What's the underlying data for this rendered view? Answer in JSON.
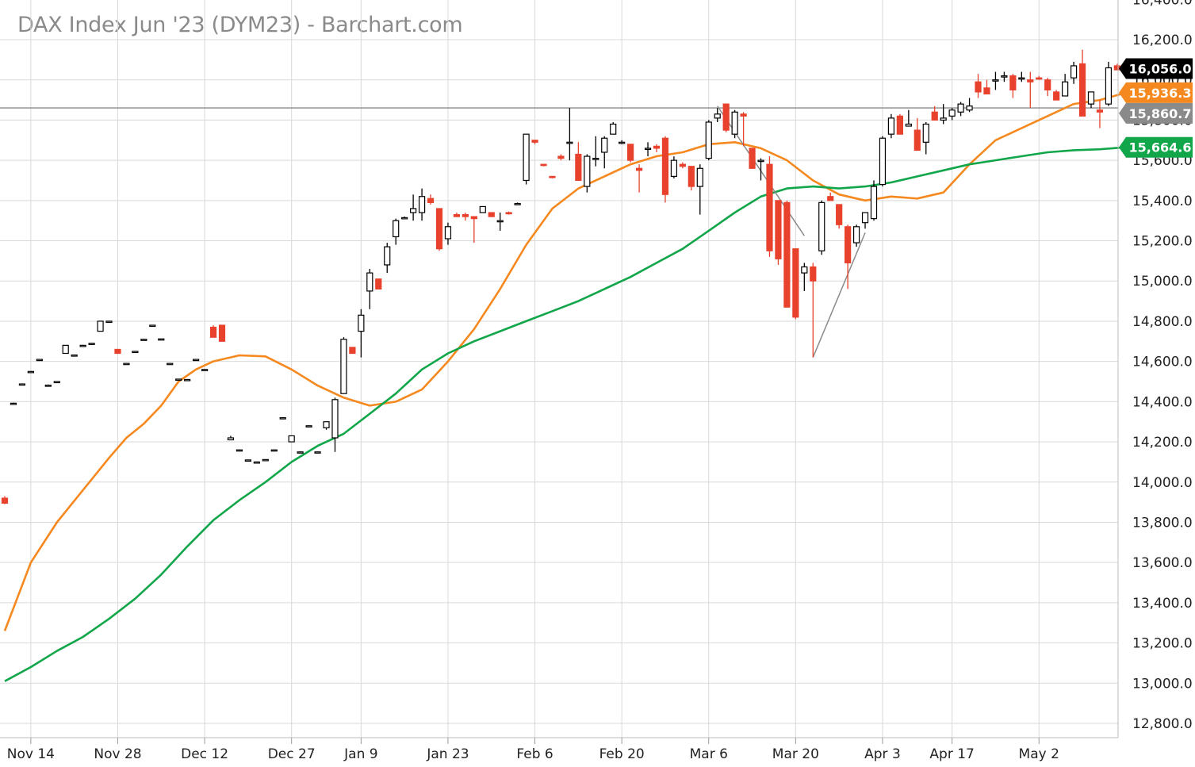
{
  "chart_title": "DAX Index Jun '23 (DYM23) - Barchart.com",
  "colors": {
    "up": "#000000",
    "down": "#e8412c",
    "ma_short": "#f5891f",
    "ma_long": "#12a64a",
    "ref_line": "#8a8a8a",
    "grid": "#d9d9d9"
  },
  "chart_data": {
    "type": "candlestick",
    "title": "DAX Index Jun '23 (DYM23) - Barchart.com",
    "y_axis": {
      "min": 12700,
      "max": 16400,
      "ticks": [
        12800,
        13000,
        13200,
        13400,
        13600,
        13800,
        14000,
        14200,
        14400,
        14600,
        14800,
        15000,
        15200,
        15400,
        15600,
        15800,
        16000,
        16200,
        16400
      ],
      "tick_labels": [
        "12,800.0",
        "13,000.0",
        "13,200.0",
        "13,400.0",
        "13,600.0",
        "13,800.0",
        "14,000.0",
        "14,200.0",
        "14,400.0",
        "14,600.0",
        "14,800.0",
        "15,000.0",
        "15,200.0",
        "15,400.0",
        "15,600.0",
        "15,800.0",
        "16,000.0",
        "16,200.0",
        "16,400.0"
      ]
    },
    "x_axis": {
      "labels": [
        "Nov 14",
        "Nov 28",
        "Dec 12",
        "Dec 27",
        "Jan 9",
        "Jan 23",
        "Feb 6",
        "Feb 20",
        "Mar 6",
        "Mar 20",
        "Apr 3",
        "Apr 17",
        "May 2"
      ],
      "label_day_index": [
        3,
        13,
        23,
        33,
        41,
        51,
        61,
        71,
        81,
        91,
        101,
        109,
        119
      ]
    },
    "grid": true,
    "price_tags": [
      {
        "label": "16,056.0",
        "value": 16056.0,
        "color": "#000000"
      },
      {
        "label": "15,936.3",
        "value": 15936.3,
        "color": "#f5891f"
      },
      {
        "label": "15,860.7",
        "value": 15860.7,
        "color": "#8a8a8a"
      },
      {
        "label": "15,664.6",
        "value": 15664.6,
        "color": "#12a64a"
      }
    ],
    "reference_line": 15860.7,
    "candles": [
      [
        0,
        13920,
        13930,
        13890,
        13895
      ],
      [
        1,
        14390,
        14395,
        14390,
        14392
      ],
      [
        2,
        14485,
        14490,
        14485,
        14488
      ],
      [
        3,
        14550,
        14552,
        14548,
        14550
      ],
      [
        4,
        14610,
        14612,
        14608,
        14610
      ],
      [
        5,
        14480,
        14485,
        14478,
        14482
      ],
      [
        6,
        14500,
        14502,
        14498,
        14500
      ],
      [
        7,
        14640,
        14680,
        14640,
        14680
      ],
      [
        8,
        14630,
        14634,
        14628,
        14632
      ],
      [
        9,
        14680,
        14682,
        14678,
        14680
      ],
      [
        10,
        14690,
        14692,
        14688,
        14690
      ],
      [
        11,
        14750,
        14800,
        14750,
        14800
      ],
      [
        12,
        14800,
        14802,
        14798,
        14800
      ],
      [
        13,
        14660,
        14660,
        14640,
        14640
      ],
      [
        14,
        14590,
        14592,
        14588,
        14590
      ],
      [
        15,
        14650,
        14652,
        14648,
        14650
      ],
      [
        16,
        14710,
        14712,
        14708,
        14710
      ],
      [
        17,
        14780,
        14782,
        14778,
        14780
      ],
      [
        18,
        14710,
        14712,
        14708,
        14712
      ],
      [
        19,
        14590,
        14592,
        14588,
        14590
      ],
      [
        20,
        14510,
        14512,
        14508,
        14512
      ],
      [
        21,
        14510,
        14512,
        14508,
        14510
      ],
      [
        22,
        14610,
        14612,
        14608,
        14610
      ],
      [
        23,
        14560,
        14562,
        14558,
        14560
      ],
      [
        24,
        14770,
        14780,
        14720,
        14720
      ],
      [
        25,
        14780,
        14780,
        14700,
        14700
      ],
      [
        26,
        14210,
        14230,
        14210,
        14220
      ],
      [
        27,
        14160,
        14162,
        14158,
        14160
      ],
      [
        28,
        14110,
        14112,
        14108,
        14110
      ],
      [
        29,
        14100,
        14102,
        14098,
        14100
      ],
      [
        30,
        14110,
        14112,
        14108,
        14112
      ],
      [
        31,
        14160,
        14162,
        14158,
        14160
      ],
      [
        32,
        14320,
        14322,
        14318,
        14320
      ],
      [
        33,
        14200,
        14230,
        14200,
        14230
      ],
      [
        34,
        14150,
        14152,
        14148,
        14150
      ],
      [
        35,
        14280,
        14282,
        14278,
        14280
      ],
      [
        36,
        14150,
        14152,
        14148,
        14150
      ],
      [
        37,
        14270,
        14300,
        14260,
        14300
      ],
      [
        38,
        14220,
        14420,
        14150,
        14410
      ],
      [
        39,
        14440,
        14720,
        14440,
        14710
      ],
      [
        40,
        14670,
        14660,
        14640,
        14640
      ],
      [
        41,
        14750,
        14860,
        14620,
        14830
      ],
      [
        42,
        14950,
        15060,
        14860,
        15040
      ],
      [
        43,
        15010,
        15010,
        14960,
        14960
      ],
      [
        44,
        15080,
        15190,
        15040,
        15170
      ],
      [
        45,
        15220,
        15310,
        15180,
        15300
      ],
      [
        46,
        15310,
        15320,
        15310,
        15315
      ],
      [
        47,
        15340,
        15430,
        15300,
        15360
      ],
      [
        48,
        15340,
        15460,
        15300,
        15420
      ],
      [
        49,
        15410,
        15430,
        15380,
        15390
      ],
      [
        50,
        15360,
        15360,
        15150,
        15160
      ],
      [
        51,
        15210,
        15290,
        15180,
        15270
      ],
      [
        52,
        15330,
        15340,
        15320,
        15320
      ],
      [
        53,
        15330,
        15340,
        15300,
        15320
      ],
      [
        54,
        15320,
        15320,
        15190,
        15310
      ],
      [
        55,
        15340,
        15370,
        15340,
        15370
      ],
      [
        56,
        15340,
        15340,
        15320,
        15320
      ],
      [
        57,
        15300,
        15340,
        15250,
        15300
      ],
      [
        58,
        15340,
        15345,
        15330,
        15335
      ],
      [
        59,
        15380,
        15390,
        15380,
        15385
      ],
      [
        60,
        15500,
        15730,
        15480,
        15730
      ],
      [
        61,
        15700,
        15700,
        15680,
        15690
      ],
      [
        62,
        15580,
        15580,
        15570,
        15575
      ],
      [
        63,
        15520,
        15520,
        15510,
        15515
      ],
      [
        64,
        15620,
        15630,
        15600,
        15610
      ],
      [
        65,
        15690,
        15860,
        15600,
        15690
      ],
      [
        66,
        15630,
        15690,
        15510,
        15500
      ],
      [
        67,
        15470,
        15630,
        15440,
        15620
      ],
      [
        68,
        15610,
        15720,
        15570,
        15610
      ],
      [
        69,
        15640,
        15720,
        15560,
        15710
      ],
      [
        70,
        15730,
        15790,
        15730,
        15780
      ],
      [
        71,
        15690,
        15700,
        15680,
        15690
      ],
      [
        72,
        15680,
        15680,
        15590,
        15600
      ],
      [
        73,
        15560,
        15580,
        15440,
        15550
      ],
      [
        74,
        15660,
        15690,
        15620,
        15660
      ],
      [
        75,
        15670,
        15680,
        15640,
        15660
      ],
      [
        76,
        15710,
        15720,
        15390,
        15430
      ],
      [
        77,
        15520,
        15620,
        15510,
        15600
      ],
      [
        78,
        15580,
        15590,
        15560,
        15570
      ],
      [
        79,
        15570,
        15570,
        15450,
        15470
      ],
      [
        80,
        15470,
        15580,
        15330,
        15560
      ],
      [
        81,
        15610,
        15800,
        15600,
        15790
      ],
      [
        82,
        15810,
        15860,
        15790,
        15830
      ],
      [
        83,
        15880,
        15880,
        15740,
        15750
      ],
      [
        84,
        15730,
        15850,
        15710,
        15840
      ],
      [
        85,
        15830,
        15840,
        15670,
        15820
      ],
      [
        86,
        15660,
        15660,
        15560,
        15560
      ],
      [
        87,
        15600,
        15610,
        15500,
        15600
      ],
      [
        88,
        15580,
        15620,
        15120,
        15150
      ],
      [
        89,
        15400,
        15400,
        15080,
        15110
      ],
      [
        90,
        15390,
        15400,
        14870,
        14870
      ],
      [
        91,
        15160,
        15160,
        14810,
        14820
      ],
      [
        92,
        15040,
        15090,
        14950,
        15070
      ],
      [
        93,
        15070,
        15090,
        14620,
        15000
      ],
      [
        94,
        15150,
        15400,
        15130,
        15390
      ],
      [
        95,
        15420,
        15440,
        15400,
        15400
      ],
      [
        96,
        15380,
        15380,
        15260,
        15280
      ],
      [
        97,
        15270,
        15280,
        14960,
        15090
      ],
      [
        98,
        15190,
        15280,
        15170,
        15270
      ],
      [
        99,
        15290,
        15340,
        15260,
        15340
      ],
      [
        100,
        15310,
        15500,
        15300,
        15470
      ],
      [
        101,
        15480,
        15720,
        15470,
        15710
      ],
      [
        102,
        15730,
        15830,
        15710,
        15810
      ],
      [
        103,
        15820,
        15830,
        15730,
        15730
      ],
      [
        104,
        15770,
        15850,
        15770,
        15780
      ],
      [
        105,
        15750,
        15810,
        15650,
        15650
      ],
      [
        106,
        15690,
        15790,
        15630,
        15780
      ],
      [
        107,
        15840,
        15870,
        15800,
        15800
      ],
      [
        108,
        15800,
        15880,
        15780,
        15810
      ],
      [
        109,
        15820,
        15860,
        15800,
        15850
      ],
      [
        110,
        15840,
        15890,
        15820,
        15880
      ],
      [
        111,
        15850,
        15910,
        15840,
        15870
      ],
      [
        112,
        15990,
        16030,
        15910,
        15940
      ],
      [
        113,
        15960,
        16000,
        15930,
        15930
      ],
      [
        114,
        16000,
        16040,
        15950,
        16000
      ],
      [
        115,
        16020,
        16040,
        15990,
        16020
      ],
      [
        116,
        16020,
        16030,
        15910,
        15950
      ],
      [
        117,
        16010,
        16040,
        15990,
        16010
      ],
      [
        118,
        16000,
        16040,
        15860,
        15990
      ],
      [
        119,
        16010,
        16020,
        16000,
        16005
      ],
      [
        120,
        16000,
        16010,
        15920,
        15950
      ],
      [
        121,
        15940,
        15950,
        15900,
        15900
      ],
      [
        122,
        15920,
        16030,
        15920,
        15990
      ],
      [
        123,
        16010,
        16090,
        15980,
        16070
      ],
      [
        124,
        16080,
        16150,
        15820,
        15820
      ],
      [
        125,
        15880,
        15930,
        15860,
        15940
      ],
      [
        126,
        15850,
        15900,
        15760,
        15840
      ],
      [
        127,
        15880,
        16090,
        15870,
        16060
      ],
      [
        128,
        16070,
        16080,
        16050,
        16050
      ],
      [
        129,
        16050,
        16060,
        16040,
        16056
      ]
    ],
    "series": [
      {
        "color": "#f5891f",
        "points": [
          [
            0,
            13260
          ],
          [
            3,
            13600
          ],
          [
            6,
            13800
          ],
          [
            9,
            13960
          ],
          [
            12,
            14120
          ],
          [
            14,
            14220
          ],
          [
            16,
            14290
          ],
          [
            18,
            14380
          ],
          [
            20,
            14500
          ],
          [
            22,
            14560
          ],
          [
            24,
            14600
          ],
          [
            27,
            14630
          ],
          [
            30,
            14625
          ],
          [
            33,
            14560
          ],
          [
            36,
            14480
          ],
          [
            39,
            14420
          ],
          [
            42,
            14380
          ],
          [
            45,
            14400
          ],
          [
            48,
            14460
          ],
          [
            51,
            14600
          ],
          [
            54,
            14760
          ],
          [
            57,
            14960
          ],
          [
            60,
            15180
          ],
          [
            63,
            15360
          ],
          [
            66,
            15460
          ],
          [
            69,
            15520
          ],
          [
            72,
            15580
          ],
          [
            75,
            15620
          ],
          [
            78,
            15640
          ],
          [
            81,
            15680
          ],
          [
            84,
            15690
          ],
          [
            87,
            15660
          ],
          [
            90,
            15600
          ],
          [
            93,
            15500
          ],
          [
            96,
            15430
          ],
          [
            99,
            15400
          ],
          [
            102,
            15420
          ],
          [
            105,
            15410
          ],
          [
            108,
            15440
          ],
          [
            111,
            15580
          ],
          [
            114,
            15700
          ],
          [
            117,
            15760
          ],
          [
            120,
            15820
          ],
          [
            123,
            15880
          ],
          [
            126,
            15900
          ],
          [
            129,
            15936
          ]
        ]
      },
      {
        "color": "#12a64a",
        "points": [
          [
            0,
            13010
          ],
          [
            3,
            13080
          ],
          [
            6,
            13160
          ],
          [
            9,
            13230
          ],
          [
            12,
            13320
          ],
          [
            15,
            13420
          ],
          [
            18,
            13540
          ],
          [
            21,
            13680
          ],
          [
            24,
            13810
          ],
          [
            27,
            13910
          ],
          [
            30,
            14000
          ],
          [
            33,
            14100
          ],
          [
            36,
            14180
          ],
          [
            39,
            14240
          ],
          [
            42,
            14340
          ],
          [
            45,
            14440
          ],
          [
            48,
            14560
          ],
          [
            51,
            14640
          ],
          [
            54,
            14700
          ],
          [
            57,
            14750
          ],
          [
            60,
            14800
          ],
          [
            63,
            14850
          ],
          [
            66,
            14900
          ],
          [
            69,
            14960
          ],
          [
            72,
            15020
          ],
          [
            75,
            15090
          ],
          [
            78,
            15160
          ],
          [
            81,
            15250
          ],
          [
            84,
            15340
          ],
          [
            87,
            15420
          ],
          [
            90,
            15460
          ],
          [
            93,
            15470
          ],
          [
            96,
            15460
          ],
          [
            99,
            15470
          ],
          [
            102,
            15490
          ],
          [
            105,
            15520
          ],
          [
            108,
            15550
          ],
          [
            111,
            15580
          ],
          [
            114,
            15600
          ],
          [
            117,
            15620
          ],
          [
            120,
            15640
          ],
          [
            123,
            15650
          ],
          [
            126,
            15655
          ],
          [
            129,
            15665
          ]
        ]
      }
    ],
    "trendlines": [
      {
        "from": [
          82,
          15870
        ],
        "to": [
          92,
          15225
        ]
      },
      {
        "from": [
          93,
          14620
        ],
        "to": [
          99,
          15240
        ]
      }
    ]
  }
}
